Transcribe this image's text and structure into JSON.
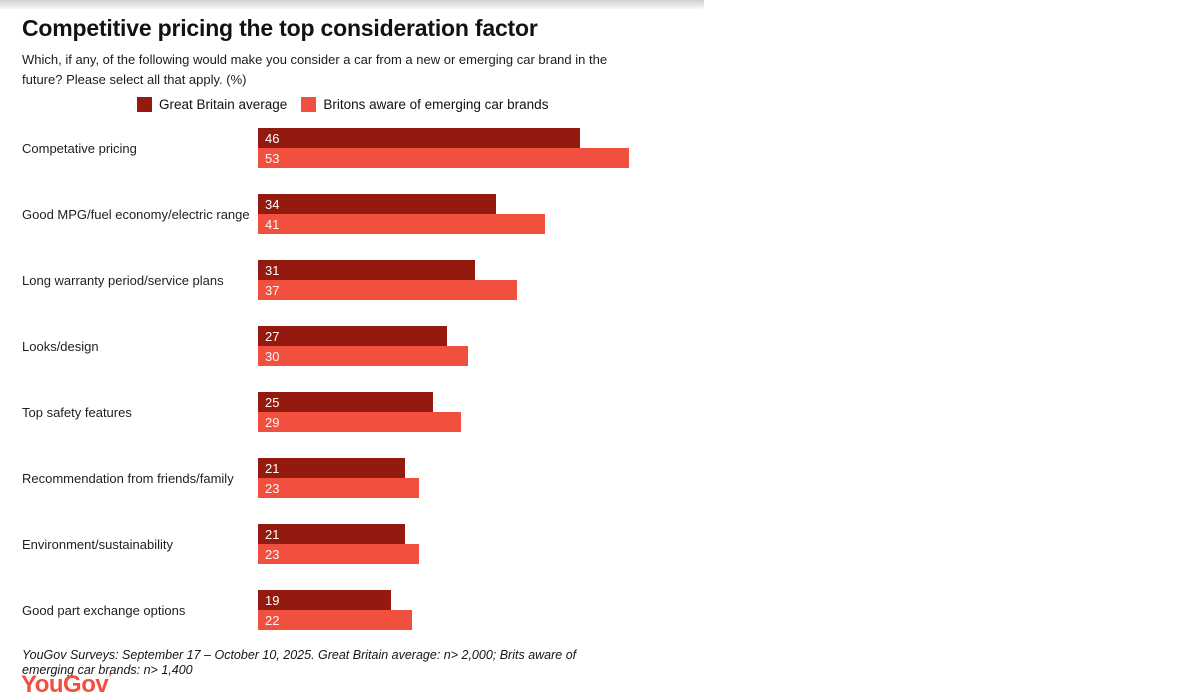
{
  "page": {
    "title": "Competitive pricing the top consideration factor",
    "subtitle": "Which, if any, of the following would make you consider a car from a new or emerging car brand in the future? Please select all that apply. (%)",
    "footnote": "YouGov Surveys: September 17 – October 10, 2025. Great Britain average: n> 2,000; Brits aware of emerging car brands: n> 1,400",
    "logo_text": "YouGov",
    "logo_mark": "’",
    "logo_color": "#f2503e"
  },
  "legend": [
    {
      "label": "Great Britain average",
      "color": "#941a0f"
    },
    {
      "label": "Britons aware of emerging car brands",
      "color": "#f2503e"
    }
  ],
  "chart_data": {
    "type": "bar",
    "orientation": "horizontal",
    "title": "Competitive pricing the top consideration factor",
    "xlabel": "",
    "ylabel": "",
    "value_label_position": "inside-start",
    "grid": false,
    "legend_position": "top",
    "categories": [
      "Competative pricing",
      "Good MPG/fuel economy/electric range",
      "Long warranty period/service plans",
      "Looks/design",
      "Top safety features",
      "Recommendation from friends/family",
      "Environment/sustainability",
      "Good part exchange options"
    ],
    "series": [
      {
        "name": "Great Britain average",
        "color": "#941a0f",
        "values": [
          46,
          34,
          31,
          27,
          25,
          21,
          21,
          19
        ]
      },
      {
        "name": "Britons aware of emerging car brands",
        "color": "#f2503e",
        "values": [
          53,
          41,
          37,
          30,
          29,
          23,
          23,
          22
        ]
      }
    ],
    "xlim": [
      0,
      100
    ]
  }
}
